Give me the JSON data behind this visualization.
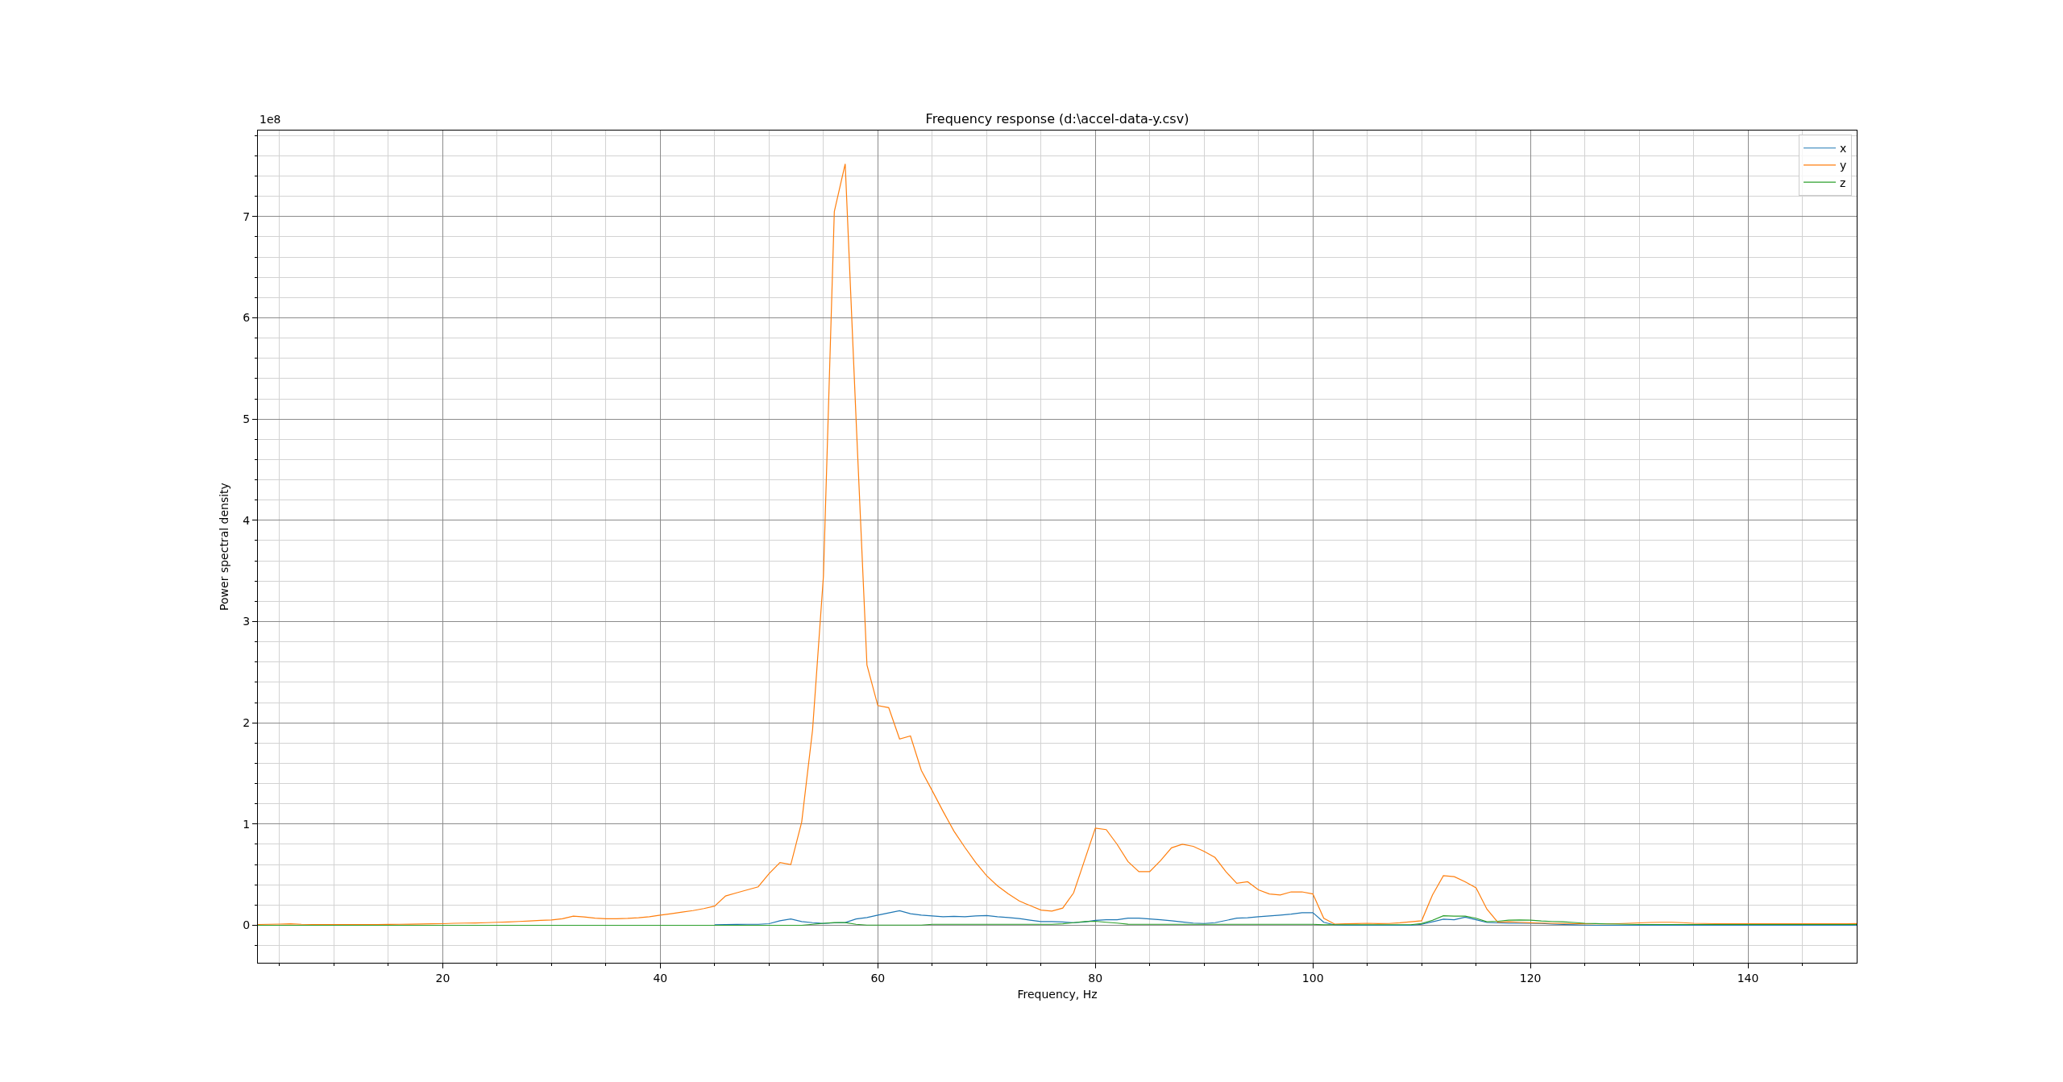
{
  "chart_data": {
    "type": "line",
    "title": "Frequency response (d:\\accel-data-y.csv)",
    "xlabel": "Frequency, Hz",
    "ylabel": "Power spectral density",
    "annotations": [
      "1e8"
    ],
    "x": [
      3,
      4,
      5,
      6,
      7,
      8,
      9,
      10,
      11,
      12,
      13,
      14,
      15,
      16,
      17,
      18,
      19,
      20,
      21,
      22,
      23,
      24,
      25,
      26,
      27,
      28,
      29,
      30,
      31,
      32,
      33,
      34,
      35,
      36,
      37,
      38,
      39,
      40,
      41,
      42,
      43,
      44,
      45,
      46,
      47,
      48,
      49,
      50,
      51,
      52,
      53,
      54,
      55,
      56,
      57,
      58,
      59,
      60,
      61,
      62,
      63,
      64,
      65,
      66,
      67,
      68,
      69,
      70,
      71,
      72,
      73,
      74,
      75,
      76,
      77,
      78,
      79,
      80,
      81,
      82,
      83,
      84,
      85,
      86,
      87,
      88,
      89,
      90,
      91,
      92,
      93,
      94,
      95,
      96,
      97,
      98,
      99,
      100,
      101,
      102,
      103,
      104,
      105,
      106,
      107,
      108,
      109,
      110,
      111,
      112,
      113,
      114,
      115,
      116,
      117,
      118,
      119,
      120,
      121,
      122,
      123,
      124,
      125,
      126,
      127,
      128,
      129,
      130,
      131,
      132,
      133,
      134,
      135,
      136,
      137,
      138,
      139,
      140,
      141,
      142,
      143,
      144,
      145,
      146,
      147,
      148,
      149,
      150
    ],
    "series": [
      {
        "name": "x",
        "color": "#1f77b4",
        "values": [
          null,
          null,
          null,
          null,
          null,
          null,
          null,
          null,
          null,
          null,
          null,
          null,
          null,
          null,
          null,
          null,
          null,
          null,
          null,
          null,
          null,
          null,
          null,
          null,
          null,
          null,
          null,
          null,
          null,
          null,
          null,
          null,
          null,
          null,
          null,
          null,
          null,
          null,
          null,
          null,
          null,
          null,
          0.006,
          0.008,
          0.009,
          0.01,
          0.01,
          0.016,
          0.045,
          0.062,
          0.037,
          0.026,
          0.018,
          0.024,
          0.027,
          0.062,
          0.076,
          0.1,
          0.123,
          0.144,
          0.114,
          0.1,
          0.092,
          0.085,
          0.088,
          0.085,
          0.092,
          0.096,
          0.085,
          0.077,
          0.066,
          0.051,
          0.037,
          0.037,
          0.033,
          0.026,
          0.033,
          0.048,
          0.055,
          0.055,
          0.07,
          0.07,
          0.063,
          0.055,
          0.044,
          0.033,
          0.022,
          0.018,
          0.026,
          0.048,
          0.07,
          0.074,
          0.085,
          0.092,
          0.1,
          0.11,
          0.125,
          0.125,
          0.03,
          0.004,
          0,
          0,
          0,
          0,
          0,
          0,
          0,
          0.01,
          0.035,
          0.06,
          0.055,
          0.08,
          0.055,
          0.028,
          0.024,
          0.02,
          0.02,
          0.02,
          0.018,
          0.012,
          0.008,
          0.005,
          0.002,
          0,
          0,
          0,
          0,
          0,
          0,
          0,
          0,
          0,
          0,
          0,
          0,
          0,
          0,
          0,
          0,
          0,
          0,
          0,
          0,
          0,
          0,
          0,
          0,
          0
        ]
      },
      {
        "name": "y",
        "color": "#ff7f0e",
        "values": [
          0.008,
          0.01,
          0.012,
          0.015,
          0.01,
          0.008,
          0.008,
          0.008,
          0.008,
          0.008,
          0.008,
          0.008,
          0.009,
          0.01,
          0.011,
          0.013,
          0.015,
          0.016,
          0.02,
          0.022,
          0.023,
          0.026,
          0.03,
          0.033,
          0.038,
          0.042,
          0.048,
          0.053,
          0.065,
          0.09,
          0.082,
          0.07,
          0.065,
          0.065,
          0.068,
          0.075,
          0.085,
          0.1,
          0.115,
          0.13,
          0.145,
          0.165,
          0.19,
          0.29,
          0.32,
          0.35,
          0.38,
          0.51,
          0.62,
          0.6,
          1.02,
          1.93,
          3.45,
          7.05,
          7.52,
          5.0,
          2.57,
          2.17,
          2.15,
          1.84,
          1.87,
          1.53,
          1.33,
          1.125,
          0.93,
          0.77,
          0.62,
          0.49,
          0.39,
          0.31,
          0.24,
          0.195,
          0.15,
          0.14,
          0.17,
          0.32,
          0.64,
          0.96,
          0.945,
          0.8,
          0.63,
          0.53,
          0.53,
          0.64,
          0.765,
          0.8,
          0.78,
          0.73,
          0.67,
          0.53,
          0.415,
          0.43,
          0.35,
          0.31,
          0.3,
          0.33,
          0.33,
          0.31,
          0.07,
          0.012,
          0.015,
          0.017,
          0.02,
          0.017,
          0.018,
          0.025,
          0.035,
          0.045,
          0.3,
          0.49,
          0.48,
          0.43,
          0.37,
          0.16,
          0.03,
          0.035,
          0.03,
          0.025,
          0.022,
          0.02,
          0.018,
          0.016,
          0.015,
          0.014,
          0.014,
          0.016,
          0.02,
          0.024,
          0.028,
          0.03,
          0.03,
          0.026,
          0.02,
          0.018,
          0.016,
          0.016,
          0.016,
          0.016,
          0.016,
          0.016,
          0.016,
          0.016,
          0.016,
          0.016,
          0.016,
          0.016,
          0.016,
          0.017
        ]
      },
      {
        "name": "z",
        "color": "#2ca02c",
        "values": [
          0,
          0,
          0,
          0,
          0,
          0,
          0,
          0,
          0,
          0,
          0,
          0,
          0,
          0,
          0,
          0,
          0,
          0,
          0,
          0,
          0,
          0,
          0,
          0,
          0,
          0,
          0,
          0,
          0,
          0,
          0,
          0,
          0,
          0,
          0,
          0,
          0,
          0,
          0,
          0,
          0,
          0,
          0,
          0,
          0,
          0,
          0,
          0,
          0,
          0,
          0,
          0.01,
          0.02,
          0.027,
          0.027,
          0.01,
          0.002,
          0.002,
          0.002,
          0.002,
          0.002,
          0.002,
          0.01,
          0.01,
          0.01,
          0.01,
          0.01,
          0.01,
          0.01,
          0.01,
          0.01,
          0.01,
          0.01,
          0.01,
          0.015,
          0.026,
          0.037,
          0.04,
          0.03,
          0.022,
          0.011,
          0.01,
          0.01,
          0.01,
          0.01,
          0.01,
          0.01,
          0.01,
          0.01,
          0.01,
          0.01,
          0.01,
          0.01,
          0.01,
          0.01,
          0.01,
          0.01,
          0.01,
          0.005,
          0.006,
          0.006,
          0.006,
          0.006,
          0.006,
          0.006,
          0.006,
          0.006,
          0.017,
          0.05,
          0.094,
          0.09,
          0.09,
          0.07,
          0.035,
          0.04,
          0.05,
          0.052,
          0.05,
          0.042,
          0.038,
          0.035,
          0.028,
          0.02,
          0.017,
          0.014,
          0.012,
          0.01,
          0.008,
          0.008,
          0.008,
          0.008,
          0.008,
          0.008,
          0.008,
          0.008,
          0.008,
          0.008,
          0.008,
          0.008,
          0.008,
          0.008,
          0.008,
          0.008,
          0.008,
          0.008,
          0.008,
          0.008,
          0.008
        ]
      }
    ],
    "xlim": [
      3,
      150
    ],
    "ylim": [
      -0.37,
      7.85
    ],
    "xticks": [
      {
        "value": 5,
        "label": null
      },
      {
        "value": 10,
        "label": null
      },
      {
        "value": 15,
        "label": null
      },
      20,
      {
        "value": 25,
        "label": null
      },
      {
        "value": 30,
        "label": null
      },
      {
        "value": 35,
        "label": null
      },
      40,
      {
        "value": 45,
        "label": null
      },
      {
        "value": 50,
        "label": null
      },
      {
        "value": 55,
        "label": null
      },
      60,
      {
        "value": 65,
        "label": null
      },
      {
        "value": 70,
        "label": null
      },
      {
        "value": 75,
        "label": null
      },
      80,
      {
        "value": 85,
        "label": null
      },
      {
        "value": 90,
        "label": null
      },
      {
        "value": 95,
        "label": null
      },
      100,
      {
        "value": 105,
        "label": null
      },
      {
        "value": 110,
        "label": null
      },
      {
        "value": 115,
        "label": null
      },
      120,
      {
        "value": 125,
        "label": null
      },
      {
        "value": 130,
        "label": null
      },
      {
        "value": 135,
        "label": null
      },
      140,
      {
        "value": 145,
        "label": null
      }
    ],
    "yticks": [
      {
        "value": -0.2,
        "label": null
      },
      0,
      {
        "value": 0.2,
        "label": null
      },
      {
        "value": 0.4,
        "label": null
      },
      {
        "value": 0.6,
        "label": null
      },
      {
        "value": 0.8,
        "label": null
      },
      1,
      {
        "value": 1.2,
        "label": null
      },
      {
        "value": 1.4,
        "label": null
      },
      {
        "value": 1.6,
        "label": null
      },
      {
        "value": 1.8,
        "label": null
      },
      2,
      {
        "value": 2.2,
        "label": null
      },
      {
        "value": 2.4,
        "label": null
      },
      {
        "value": 2.6,
        "label": null
      },
      {
        "value": 2.8,
        "label": null
      },
      3,
      {
        "value": 3.2,
        "label": null
      },
      {
        "value": 3.4,
        "label": null
      },
      {
        "value": 3.6,
        "label": null
      },
      {
        "value": 3.8,
        "label": null
      },
      4,
      {
        "value": 4.2,
        "label": null
      },
      {
        "value": 4.4,
        "label": null
      },
      {
        "value": 4.6,
        "label": null
      },
      {
        "value": 4.8,
        "label": null
      },
      5,
      {
        "value": 5.2,
        "label": null
      },
      {
        "value": 5.4,
        "label": null
      },
      {
        "value": 5.6,
        "label": null
      },
      {
        "value": 5.8,
        "label": null
      },
      6,
      {
        "value": 6.2,
        "label": null
      },
      {
        "value": 6.4,
        "label": null
      },
      {
        "value": 6.6,
        "label": null
      },
      {
        "value": 6.8,
        "label": null
      },
      7,
      {
        "value": 7.2,
        "label": null
      },
      {
        "value": 7.4,
        "label": null
      },
      {
        "value": 7.6,
        "label": null
      },
      {
        "value": 7.8,
        "label": null
      }
    ],
    "grid": true,
    "legend": "top right"
  }
}
